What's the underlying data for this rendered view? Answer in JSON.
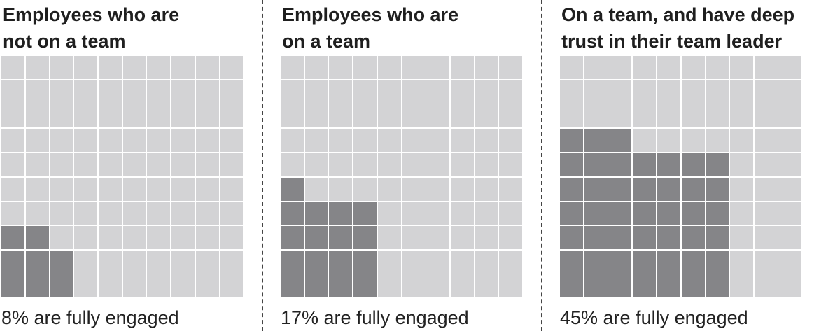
{
  "chart_data": {
    "type": "waffle",
    "grid": {
      "rows": 10,
      "cols": 10
    },
    "colors": {
      "filled": "#858588",
      "empty": "#d3d3d5"
    },
    "panels": [
      {
        "title": "Employees who are\nnot on a team",
        "caption": "8% are fully engaged",
        "percent": 8,
        "column_fill_counts": [
          3,
          3,
          2,
          0,
          0,
          0,
          0,
          0,
          0,
          0
        ]
      },
      {
        "title": "Employees who are\non a team",
        "caption": "17% are fully engaged",
        "percent": 17,
        "column_fill_counts": [
          5,
          4,
          4,
          4,
          0,
          0,
          0,
          0,
          0,
          0
        ]
      },
      {
        "title": "On a team, and have deep\ntrust in their team leader",
        "caption": "45% are fully engaged",
        "percent": 45,
        "column_fill_counts": [
          7,
          7,
          7,
          6,
          6,
          6,
          6,
          0,
          0,
          0
        ]
      }
    ]
  }
}
